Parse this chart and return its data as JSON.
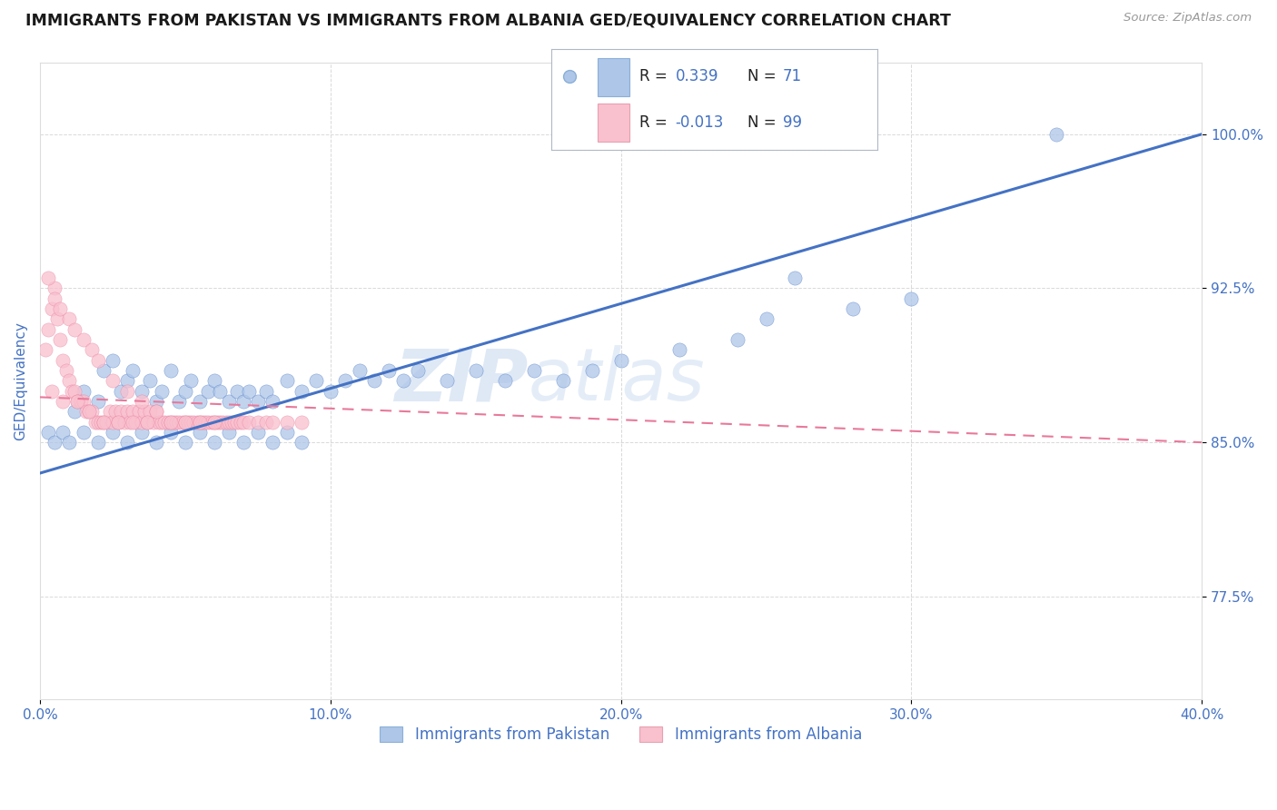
{
  "title": "IMMIGRANTS FROM PAKISTAN VS IMMIGRANTS FROM ALBANIA GED/EQUIVALENCY CORRELATION CHART",
  "source": "Source: ZipAtlas.com",
  "xlabel_ticks": [
    "0.0%",
    "10.0%",
    "20.0%",
    "30.0%",
    "40.0%"
  ],
  "xlabel_vals": [
    0.0,
    10.0,
    20.0,
    30.0,
    40.0
  ],
  "ylabel_ticks": [
    "77.5%",
    "85.0%",
    "92.5%",
    "100.0%"
  ],
  "ylabel_vals": [
    77.5,
    85.0,
    92.5,
    100.0
  ],
  "xlim": [
    0.0,
    40.0
  ],
  "ylim": [
    72.5,
    103.5
  ],
  "series1_name": "Immigrants from Pakistan",
  "series1_color": "#aec6e8",
  "series1_R": "0.339",
  "series1_N": "71",
  "series2_name": "Immigrants from Albania",
  "series2_color": "#f9c0ce",
  "series2_R": "-0.013",
  "series2_N": "99",
  "line1_color": "#4472c4",
  "line2_color": "#e8799a",
  "pakistan_x": [
    1.2,
    1.5,
    2.0,
    2.2,
    2.5,
    2.8,
    3.0,
    3.2,
    3.5,
    3.8,
    4.0,
    4.2,
    4.5,
    4.8,
    5.0,
    5.2,
    5.5,
    5.8,
    6.0,
    6.2,
    6.5,
    6.8,
    7.0,
    7.2,
    7.5,
    7.8,
    8.0,
    8.5,
    9.0,
    9.5,
    10.0,
    10.5,
    11.0,
    11.5,
    12.0,
    12.5,
    13.0,
    14.0,
    15.0,
    16.0,
    17.0,
    18.0,
    19.0,
    20.0,
    22.0,
    24.0,
    25.0,
    26.0,
    28.0,
    30.0,
    0.3,
    0.5,
    0.8,
    1.0,
    1.5,
    2.0,
    2.5,
    3.0,
    3.5,
    4.0,
    4.5,
    5.0,
    5.5,
    6.0,
    6.5,
    7.0,
    7.5,
    8.0,
    8.5,
    9.0,
    35.0
  ],
  "pakistan_y": [
    86.5,
    87.5,
    87.0,
    88.5,
    89.0,
    87.5,
    88.0,
    88.5,
    87.5,
    88.0,
    87.0,
    87.5,
    88.5,
    87.0,
    87.5,
    88.0,
    87.0,
    87.5,
    88.0,
    87.5,
    87.0,
    87.5,
    87.0,
    87.5,
    87.0,
    87.5,
    87.0,
    88.0,
    87.5,
    88.0,
    87.5,
    88.0,
    88.5,
    88.0,
    88.5,
    88.0,
    88.5,
    88.0,
    88.5,
    88.0,
    88.5,
    88.0,
    88.5,
    89.0,
    89.5,
    90.0,
    91.0,
    93.0,
    91.5,
    92.0,
    85.5,
    85.0,
    85.5,
    85.0,
    85.5,
    85.0,
    85.5,
    85.0,
    85.5,
    85.0,
    85.5,
    85.0,
    85.5,
    85.0,
    85.5,
    85.0,
    85.5,
    85.0,
    85.5,
    85.0,
    100.0
  ],
  "albania_x": [
    0.2,
    0.3,
    0.4,
    0.5,
    0.6,
    0.7,
    0.8,
    0.9,
    1.0,
    1.1,
    1.2,
    1.3,
    1.4,
    1.5,
    1.6,
    1.7,
    1.8,
    1.9,
    2.0,
    2.1,
    2.2,
    2.3,
    2.4,
    2.5,
    2.6,
    2.7,
    2.8,
    2.9,
    3.0,
    3.1,
    3.2,
    3.3,
    3.4,
    3.5,
    3.6,
    3.7,
    3.8,
    3.9,
    4.0,
    4.1,
    4.2,
    4.3,
    4.4,
    4.5,
    4.6,
    4.7,
    4.8,
    4.9,
    5.0,
    5.1,
    5.2,
    5.3,
    5.4,
    5.5,
    5.6,
    5.7,
    5.8,
    5.9,
    6.0,
    6.1,
    6.2,
    6.3,
    6.4,
    6.5,
    6.6,
    6.7,
    6.8,
    6.9,
    7.0,
    7.2,
    7.5,
    7.8,
    8.0,
    8.5,
    9.0,
    0.3,
    0.5,
    0.7,
    1.0,
    1.2,
    1.5,
    1.8,
    2.0,
    2.5,
    3.0,
    3.5,
    4.0,
    4.5,
    5.0,
    5.5,
    6.0,
    0.4,
    0.8,
    1.3,
    1.7,
    2.2,
    2.7,
    3.2,
    3.7
  ],
  "albania_y": [
    89.5,
    90.5,
    91.5,
    92.5,
    91.0,
    90.0,
    89.0,
    88.5,
    88.0,
    87.5,
    87.5,
    87.0,
    87.0,
    87.0,
    86.5,
    86.5,
    86.5,
    86.0,
    86.0,
    86.0,
    86.0,
    86.0,
    86.5,
    86.0,
    86.5,
    86.0,
    86.5,
    86.0,
    86.5,
    86.0,
    86.5,
    86.0,
    86.5,
    86.0,
    86.5,
    86.0,
    86.5,
    86.0,
    86.5,
    86.0,
    86.0,
    86.0,
    86.0,
    86.0,
    86.0,
    86.0,
    86.0,
    86.0,
    86.0,
    86.0,
    86.0,
    86.0,
    86.0,
    86.0,
    86.0,
    86.0,
    86.0,
    86.0,
    86.0,
    86.0,
    86.0,
    86.0,
    86.0,
    86.0,
    86.0,
    86.0,
    86.0,
    86.0,
    86.0,
    86.0,
    86.0,
    86.0,
    86.0,
    86.0,
    86.0,
    93.0,
    92.0,
    91.5,
    91.0,
    90.5,
    90.0,
    89.5,
    89.0,
    88.0,
    87.5,
    87.0,
    86.5,
    86.0,
    86.0,
    86.0,
    86.0,
    87.5,
    87.0,
    87.0,
    86.5,
    86.0,
    86.0,
    86.0,
    86.0
  ],
  "watermark_line1": "ZIP",
  "watermark_line2": "atlas",
  "background_color": "#ffffff",
  "grid_color": "#d0d0d0",
  "title_color": "#1a1a1a",
  "axis_label_color": "#4472c4",
  "tick_label_color": "#4472c4",
  "trend_line1_x0": 0.0,
  "trend_line1_y0": 83.5,
  "trend_line1_x1": 40.0,
  "trend_line1_y1": 100.0,
  "trend_line2_x0": 0.0,
  "trend_line2_y0": 87.2,
  "trend_line2_x1": 40.0,
  "trend_line2_y1": 85.0
}
